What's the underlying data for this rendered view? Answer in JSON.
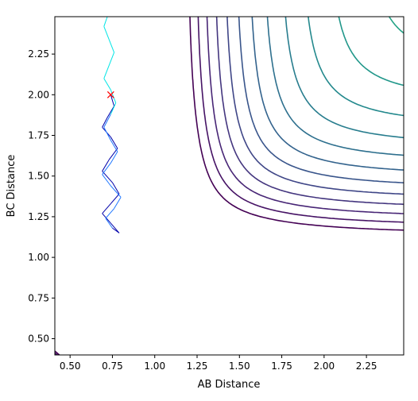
{
  "chart_data": {
    "type": "contour",
    "xlabel": "AB Distance",
    "ylabel": "BC Distance",
    "xlim": [
      0.41,
      2.47
    ],
    "ylim": [
      0.4,
      2.48
    ],
    "x_ticks": [
      "0.50",
      "0.75",
      "1.00",
      "1.25",
      "1.50",
      "1.75",
      "2.00",
      "2.25"
    ],
    "y_ticks": [
      "0.50",
      "0.75",
      "1.00",
      "1.25",
      "1.50",
      "1.75",
      "2.00",
      "2.25"
    ],
    "x_tick_values": [
      0.5,
      0.75,
      1.0,
      1.25,
      1.5,
      1.75,
      2.0,
      2.25
    ],
    "y_tick_values": [
      0.5,
      0.75,
      1.0,
      1.25,
      1.5,
      1.75,
      2.0,
      2.25
    ],
    "colormap": "viridis",
    "contour_levels": 20,
    "surface": "LEPS potential energy surface for A + BC reaction",
    "start_marker": {
      "x": 0.74,
      "y": 2.0,
      "symbol": "x",
      "color": "#ff0000"
    },
    "trajectory": {
      "colors": [
        "#00e5e5",
        "#1f77ff",
        "#0000aa"
      ],
      "points": [
        [
          0.74,
          2.0
        ],
        [
          0.76,
          1.93
        ],
        [
          0.72,
          1.86
        ],
        [
          0.69,
          1.8
        ],
        [
          0.74,
          1.74
        ],
        [
          0.78,
          1.67
        ],
        [
          0.73,
          1.6
        ],
        [
          0.69,
          1.53
        ],
        [
          0.75,
          1.46
        ],
        [
          0.79,
          1.39
        ],
        [
          0.74,
          1.33
        ],
        [
          0.69,
          1.27
        ],
        [
          0.74,
          1.21
        ],
        [
          0.79,
          1.15
        ],
        [
          0.75,
          1.18
        ],
        [
          0.71,
          1.24
        ],
        [
          0.76,
          1.3
        ],
        [
          0.8,
          1.37
        ],
        [
          0.74,
          1.44
        ],
        [
          0.69,
          1.51
        ],
        [
          0.74,
          1.58
        ],
        [
          0.78,
          1.65
        ],
        [
          0.74,
          1.72
        ],
        [
          0.7,
          1.8
        ],
        [
          0.74,
          1.88
        ],
        [
          0.77,
          1.95
        ],
        [
          0.74,
          2.03
        ],
        [
          0.7,
          2.1
        ],
        [
          0.73,
          2.18
        ],
        [
          0.76,
          2.26
        ],
        [
          0.73,
          2.34
        ],
        [
          0.7,
          2.42
        ],
        [
          0.72,
          2.48
        ]
      ]
    }
  }
}
